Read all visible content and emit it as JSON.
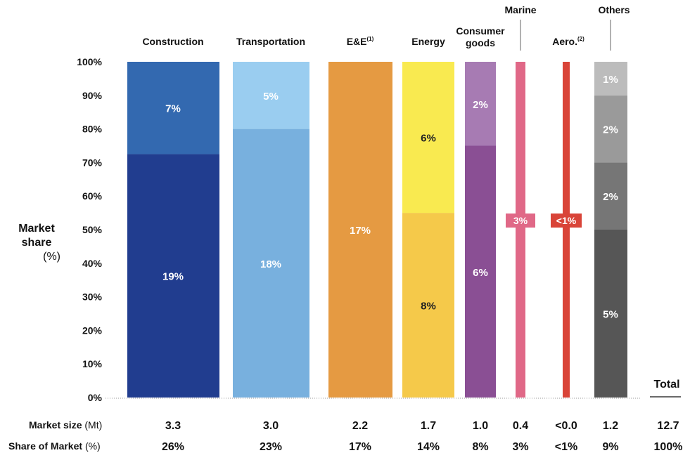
{
  "chart_data": {
    "type": "bar",
    "stacked": true,
    "ylabel_line1": "Market",
    "ylabel_line2": "share",
    "ylabel_unit": "(%)",
    "y_ticks": [
      "0%",
      "10%",
      "20%",
      "30%",
      "40%",
      "50%",
      "60%",
      "70%",
      "80%",
      "90%",
      "100%"
    ],
    "ylim": [
      0,
      100
    ],
    "total_label": "Total",
    "categories": [
      {
        "name": "Construction",
        "segments": [
          {
            "share": 72.5,
            "label": "19%",
            "color": "#213d8f"
          },
          {
            "share": 27.5,
            "label": "7%",
            "color": "#3369b0"
          }
        ]
      },
      {
        "name": "Transportation",
        "segments": [
          {
            "share": 80,
            "label": "18%",
            "color": "#78b0de"
          },
          {
            "share": 20,
            "label": "5%",
            "color": "#9acdf0"
          }
        ]
      },
      {
        "name": "E&E",
        "sup": "(1)",
        "segments": [
          {
            "share": 100,
            "label": "17%",
            "color": "#e59a42"
          }
        ]
      },
      {
        "name": "Energy",
        "segments": [
          {
            "share": 55,
            "label": "8%",
            "color": "#f5c94a"
          },
          {
            "share": 45,
            "label": "6%",
            "color": "#f9ea50"
          }
        ]
      },
      {
        "name": "Consumer goods",
        "name_lines": [
          "Consumer",
          "goods"
        ],
        "segments": [
          {
            "share": 75,
            "label": "6%",
            "color": "#8a4f94"
          },
          {
            "share": 25,
            "label": "2%",
            "color": "#a77bb3"
          }
        ]
      },
      {
        "name": "Marine",
        "thin": true,
        "segments": [
          {
            "share": 100,
            "label": "3%",
            "color": "#e06887"
          }
        ]
      },
      {
        "name": "Aero.",
        "sup": "(2)",
        "thin": true,
        "segments": [
          {
            "share": 100,
            "label": "<1%",
            "color": "#d94438"
          }
        ]
      },
      {
        "name": "Others",
        "segments": [
          {
            "share": 50,
            "label": "5%",
            "color": "#565656"
          },
          {
            "share": 20,
            "label": "2%",
            "color": "#767676"
          },
          {
            "share": 20,
            "label": "2%",
            "color": "#9a9a9a"
          },
          {
            "share": 10,
            "label": "1%",
            "color": "#bcbcbc"
          }
        ]
      }
    ],
    "rows": [
      {
        "label": "Market size",
        "unit": "(Mt)",
        "values": [
          "3.3",
          "3.0",
          "2.2",
          "1.7",
          "1.0",
          "0.4",
          "<0.0",
          "1.2"
        ],
        "total": "12.7"
      },
      {
        "label": "Share of Market",
        "unit": "(%)",
        "values": [
          "26%",
          "23%",
          "17%",
          "14%",
          "8%",
          "3%",
          "<1%",
          "9%"
        ],
        "total": "100%"
      }
    ]
  }
}
